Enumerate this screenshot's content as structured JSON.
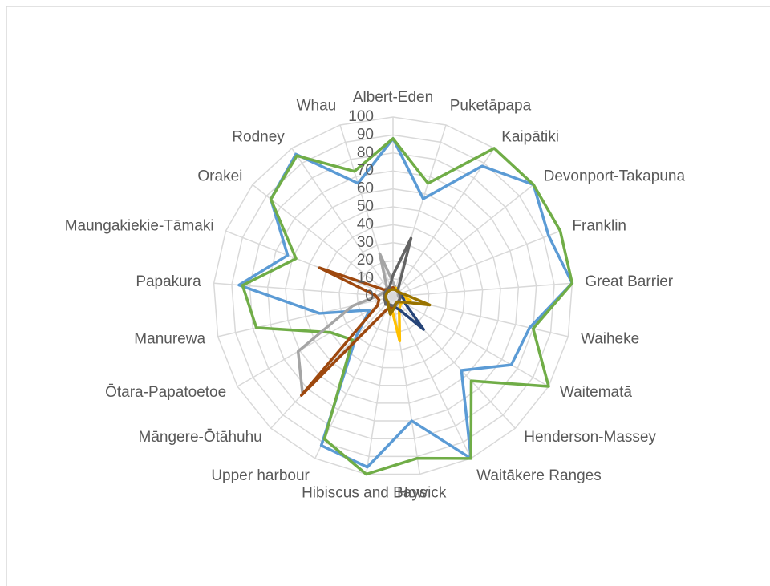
{
  "chart_data": {
    "type": "radar",
    "categories": [
      "Albert-Eden",
      "Puketāpapa",
      "Kaipātiki",
      "Devonport-Takapuna",
      "Franklin",
      "Great Barrier",
      "Waiheke",
      "Waitematā",
      "Henderson-Massey",
      "Waitākere Ranges",
      "Howick",
      "Hibiscus and Bays",
      "Upper harbour",
      "Māngere-Ōtāhuhu",
      "Ōtara-Papatoetoe",
      "Manurewa",
      "Papakura",
      "Maungakiekie-Tāmaki",
      "Orakei",
      "Rodney",
      "Whau"
    ],
    "series": [
      {
        "color": "#5b9bd5",
        "values": [
          88,
          57,
          88,
          100,
          93,
          100,
          78,
          76,
          56,
          100,
          70,
          96,
          92,
          30,
          15,
          42,
          86,
          63,
          87,
          96,
          66
        ]
      },
      {
        "color": "#70ad47",
        "values": [
          88,
          66,
          100,
          100,
          100,
          100,
          80,
          100,
          64,
          100,
          91,
          100,
          88,
          33,
          40,
          78,
          84,
          58,
          87,
          95,
          73
        ]
      },
      {
        "color": "#a5a5a5",
        "values": [
          8,
          5,
          4,
          4,
          3,
          3,
          4,
          4,
          5,
          5,
          6,
          6,
          8,
          74,
          61,
          23,
          8,
          6,
          6,
          6,
          25
        ]
      },
      {
        "color": "#ffc000",
        "values": [
          5,
          5,
          5,
          4,
          4,
          5,
          10,
          6,
          6,
          8,
          25,
          6,
          5,
          5,
          5,
          4,
          4,
          4,
          4,
          4,
          4
        ]
      },
      {
        "color": "#264478",
        "values": [
          5,
          4,
          4,
          4,
          4,
          5,
          6,
          8,
          25,
          8,
          6,
          5,
          5,
          5,
          4,
          4,
          4,
          4,
          4,
          4,
          4
        ]
      },
      {
        "color": "#9e480e",
        "values": [
          5,
          4,
          4,
          4,
          4,
          4,
          4,
          4,
          4,
          4,
          5,
          6,
          8,
          75,
          10,
          8,
          10,
          44,
          6,
          5,
          5
        ]
      },
      {
        "color": "#636363",
        "values": [
          12,
          34,
          5,
          4,
          4,
          4,
          4,
          4,
          4,
          4,
          5,
          5,
          5,
          6,
          5,
          5,
          5,
          5,
          5,
          5,
          6
        ]
      },
      {
        "color": "#997300",
        "values": [
          4,
          4,
          4,
          4,
          5,
          8,
          21,
          6,
          4,
          4,
          6,
          10,
          6,
          4,
          4,
          4,
          4,
          4,
          4,
          4,
          4
        ]
      }
    ],
    "ylim": [
      0,
      100
    ],
    "yticks": [
      0,
      10,
      20,
      30,
      40,
      50,
      60,
      70,
      80,
      90,
      100
    ],
    "grid": true
  }
}
